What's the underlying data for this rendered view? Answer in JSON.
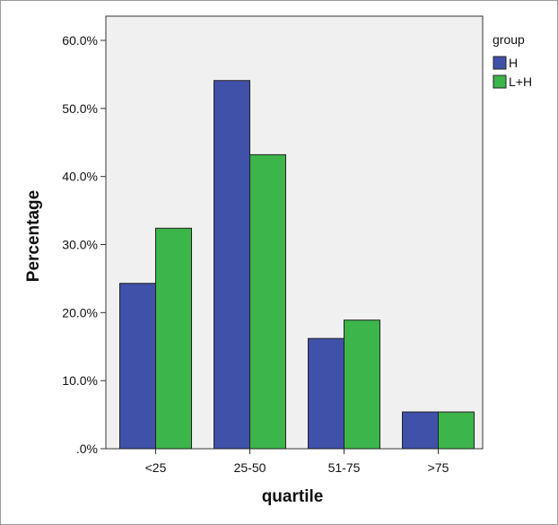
{
  "chart_data": {
    "type": "bar",
    "categories": [
      "<25",
      "25-50",
      "51-75",
      ">75"
    ],
    "series": [
      {
        "name": "H",
        "values": [
          24.3,
          54.1,
          16.2,
          5.4
        ],
        "color": "#3f51a8"
      },
      {
        "name": "L+H",
        "values": [
          32.4,
          43.2,
          18.9,
          5.4
        ],
        "color": "#3cb54a"
      }
    ],
    "xlabel": "quartile",
    "ylabel": "Percentage",
    "ylim": [
      0,
      60
    ],
    "yticks": [
      0,
      10,
      20,
      30,
      40,
      50,
      60
    ],
    "ytick_labels": [
      ".0%",
      "10.0%",
      "20.0%",
      "30.0%",
      "40.0%",
      "50.0%",
      "60.0%"
    ],
    "legend": {
      "title": "group",
      "placement": "right"
    },
    "plot_background": "#f0f0f0",
    "grid": false
  }
}
